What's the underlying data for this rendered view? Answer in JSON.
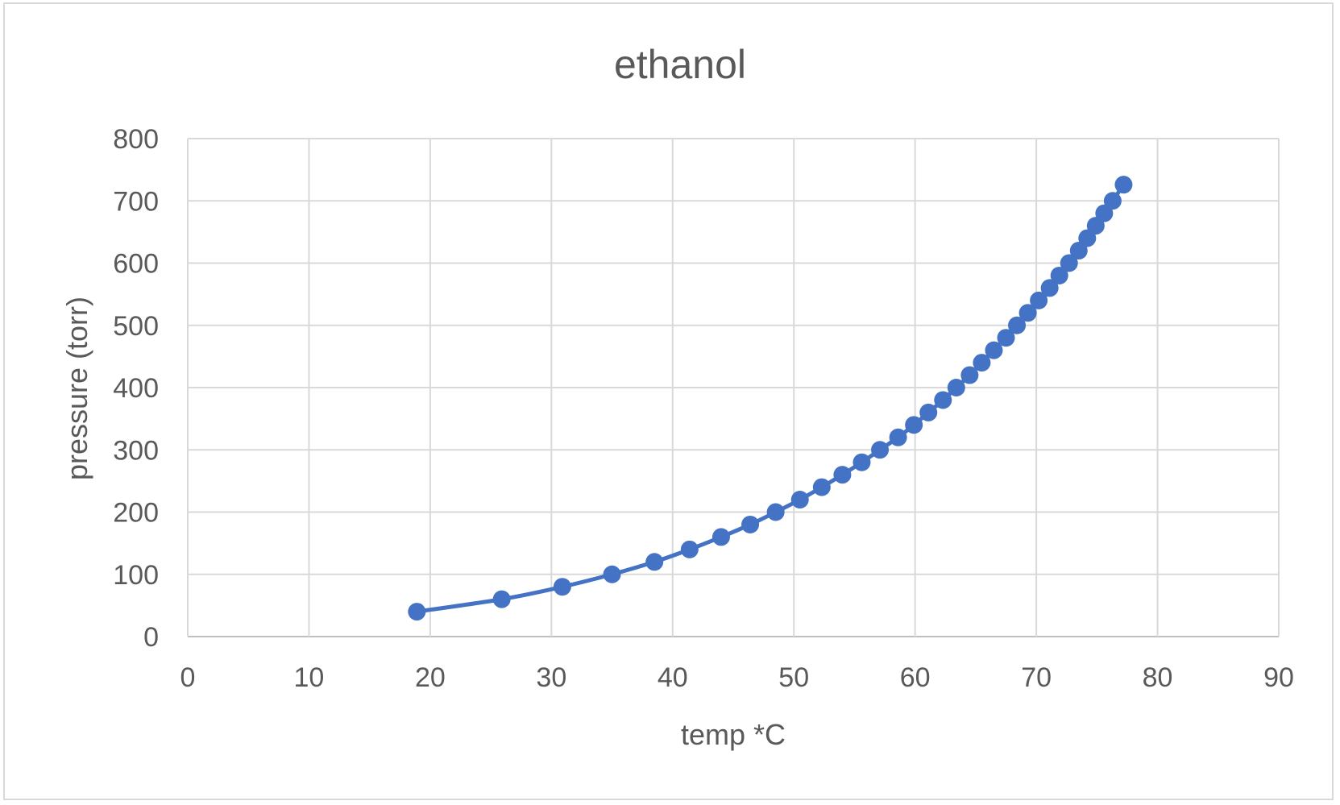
{
  "chart_data": {
    "type": "scatter",
    "title": "ethanol",
    "xlabel": "temp *C",
    "ylabel": "pressure (torr)",
    "xlim": [
      0,
      90
    ],
    "ylim": [
      0,
      800
    ],
    "xticks": [
      0,
      10,
      20,
      30,
      40,
      50,
      60,
      70,
      80,
      90
    ],
    "yticks": [
      0,
      100,
      200,
      300,
      400,
      500,
      600,
      700,
      800
    ],
    "grid": true,
    "legend": "none",
    "line": "smooth",
    "color": "#4472c4",
    "series": [
      {
        "x": [
          18.9,
          25.9,
          30.9,
          35.0,
          38.5,
          41.4,
          44.0,
          46.4,
          48.5,
          50.5,
          52.3,
          54.0,
          55.6,
          57.1,
          58.6,
          59.9,
          61.1,
          62.3,
          63.4,
          64.5,
          65.5,
          66.5,
          67.5,
          68.4,
          69.3,
          70.2,
          71.1,
          71.9,
          72.7,
          73.5,
          74.2,
          74.9,
          75.6,
          76.3,
          77.2
        ],
        "y": [
          40,
          60,
          80,
          100,
          120,
          140,
          160,
          180,
          200,
          220,
          240,
          260,
          280,
          300,
          320,
          340,
          360,
          380,
          400,
          420,
          440,
          460,
          480,
          500,
          520,
          540,
          560,
          580,
          600,
          620,
          640,
          660,
          680,
          700,
          726
        ]
      }
    ]
  }
}
